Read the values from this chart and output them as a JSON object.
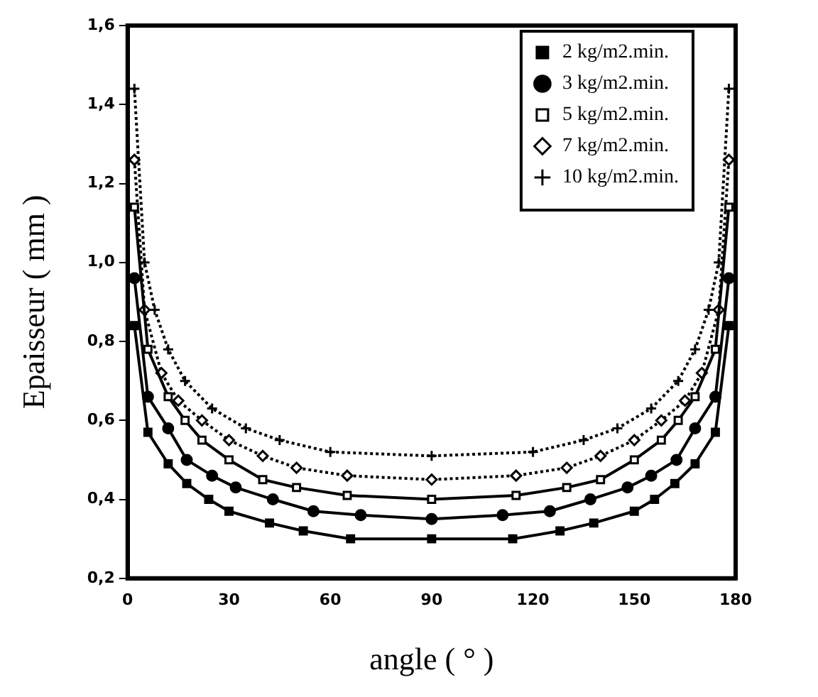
{
  "chart_data": {
    "type": "line",
    "xlabel": "angle ( ° )",
    "ylabel": "Epaisseur ( mm )",
    "xlim": [
      0,
      180
    ],
    "xticks": [
      0,
      30,
      60,
      90,
      120,
      150,
      180
    ],
    "ylim": [
      0.2,
      1.6
    ],
    "yticks": [
      {
        "value": 0.2,
        "label": "0,2"
      },
      {
        "value": 0.4,
        "label": "0,4"
      },
      {
        "value": 0.6,
        "label": "0,6"
      },
      {
        "value": 0.8,
        "label": "0,8"
      },
      {
        "value": 1.0,
        "label": "1,0"
      },
      {
        "value": 1.2,
        "label": "1,2"
      },
      {
        "value": 1.4,
        "label": "1,4"
      },
      {
        "value": 1.6,
        "label": "1,6"
      }
    ],
    "grid": false,
    "legend": "top right",
    "series": [
      {
        "name": "2 kg/m2.min.",
        "color": "#000000",
        "marker": "square",
        "line_style": "solid",
        "x": [
          2,
          6,
          12,
          17.5,
          24,
          30,
          42,
          52,
          66,
          90,
          114,
          128,
          138,
          150,
          156,
          162,
          168,
          174,
          178
        ],
        "values": [
          0.84,
          0.57,
          0.49,
          0.44,
          0.4,
          0.37,
          0.34,
          0.32,
          0.3,
          0.3,
          0.3,
          0.32,
          0.34,
          0.37,
          0.4,
          0.44,
          0.49,
          0.57,
          0.84
        ]
      },
      {
        "name": "3 kg/m2.min.",
        "color": "#000000",
        "marker": "circle",
        "line_style": "solid",
        "x": [
          2,
          6,
          12,
          17.5,
          25,
          32,
          43,
          55,
          69,
          90,
          111,
          125,
          137,
          148,
          155,
          162.5,
          168,
          174,
          178
        ],
        "values": [
          0.96,
          0.66,
          0.58,
          0.5,
          0.46,
          0.43,
          0.4,
          0.37,
          0.36,
          0.35,
          0.36,
          0.37,
          0.4,
          0.43,
          0.46,
          0.5,
          0.58,
          0.66,
          0.96
        ]
      },
      {
        "name": "5 kg/m2.min.",
        "color": "#000000",
        "marker": "rect",
        "line_style": "solid",
        "x": [
          2,
          6,
          12,
          17,
          22,
          30,
          40,
          50,
          65,
          90,
          115,
          130,
          140,
          150,
          158,
          163,
          168,
          174,
          178
        ],
        "values": [
          1.14,
          0.78,
          0.66,
          0.6,
          0.55,
          0.5,
          0.45,
          0.43,
          0.41,
          0.4,
          0.41,
          0.43,
          0.45,
          0.5,
          0.55,
          0.6,
          0.66,
          0.78,
          1.14
        ]
      },
      {
        "name": "7 kg/m2.min.",
        "color": "#000000",
        "marker": "diamond",
        "line_style": "dotted",
        "x": [
          2,
          5,
          10,
          15,
          22,
          30,
          40,
          50,
          65,
          90,
          115,
          130,
          140,
          150,
          158,
          165,
          170,
          175,
          178
        ],
        "values": [
          1.26,
          0.88,
          0.72,
          0.65,
          0.6,
          0.55,
          0.51,
          0.48,
          0.46,
          0.45,
          0.46,
          0.48,
          0.51,
          0.55,
          0.6,
          0.65,
          0.72,
          0.88,
          1.26
        ]
      },
      {
        "name": "10 kg/m2.min.",
        "color": "#000000",
        "marker": "cross",
        "line_style": "dotted",
        "x": [
          2,
          5,
          8,
          12,
          17,
          25,
          35,
          45,
          60,
          90,
          120,
          135,
          145,
          155,
          163,
          168,
          172,
          175,
          178
        ],
        "values": [
          1.44,
          1.0,
          0.88,
          0.78,
          0.7,
          0.63,
          0.58,
          0.55,
          0.52,
          0.51,
          0.52,
          0.55,
          0.58,
          0.63,
          0.7,
          0.78,
          0.88,
          1.0,
          1.44
        ]
      }
    ]
  }
}
